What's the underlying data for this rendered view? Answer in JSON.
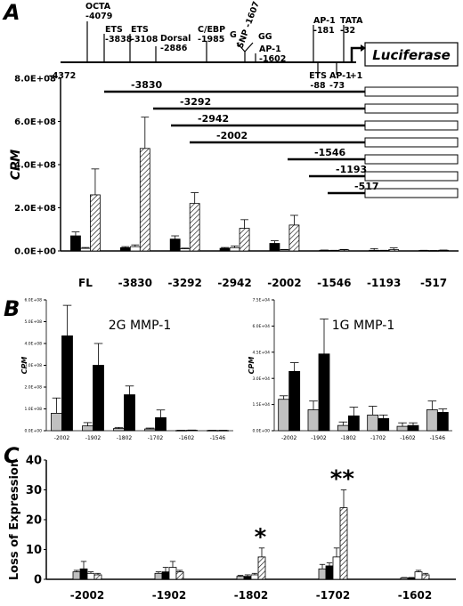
{
  "panels": {
    "a": "A",
    "b": "B",
    "c": "C"
  },
  "promoter": {
    "start_label": "-4372",
    "reporter": "Luciferase",
    "tss": "+1",
    "sites": [
      {
        "label": "OCTA\n-4079"
      },
      {
        "label": "ETS\n-3838"
      },
      {
        "label": "ETS\n-3108"
      },
      {
        "label": "Dorsal\n-2886"
      },
      {
        "label": "C/EBP\n-1985"
      },
      {
        "label": "G"
      },
      {
        "label": "SNP -1607"
      },
      {
        "label": "GG"
      },
      {
        "label": "AP-1\n-1602"
      },
      {
        "label": "AP-1\n-181"
      },
      {
        "label": "TATA\n-32"
      },
      {
        "label": "ETS\n-88"
      },
      {
        "label": "AP-1\n-73"
      }
    ]
  },
  "deletions": [
    "-3830",
    "-3292",
    "-2942",
    "-2002",
    "-1546",
    "-1193",
    "-517"
  ],
  "chart_data": [
    {
      "id": "A",
      "type": "bar",
      "ylabel": "CPM",
      "yticks": [
        "8.0E+08",
        "6.0E+08",
        "4.0E+08",
        "2.0E+08",
        "0.0E+00"
      ],
      "ylim": [
        0,
        800000000
      ],
      "categories": [
        "FL",
        "-3830",
        "-3292",
        "-2942",
        "-2002",
        "-1546",
        "-1193",
        "-517"
      ],
      "series": [
        {
          "color": "#000000",
          "pattern": "solid",
          "values": [
            70000000,
            15000000,
            55000000,
            12000000,
            35000000,
            3000000,
            3000000,
            2000000
          ],
          "errors": [
            18000000,
            5000000,
            15000000,
            4000000,
            12000000,
            1000000,
            8000000,
            1000000
          ]
        },
        {
          "color": "#ffffff",
          "pattern": "solid",
          "values": [
            12000000,
            20000000,
            10000000,
            15000000,
            5000000,
            2000000,
            2000000,
            1000000
          ],
          "errors": [
            4000000,
            8000000,
            3000000,
            8000000,
            2000000,
            1000000,
            1000000,
            1000000
          ]
        },
        {
          "color": "#ffffff",
          "pattern": "hatch",
          "values": [
            260000000,
            475000000,
            220000000,
            105000000,
            120000000,
            5000000,
            6000000,
            3000000
          ],
          "errors": [
            120000000,
            145000000,
            50000000,
            40000000,
            45000000,
            2000000,
            8000000,
            1000000
          ]
        }
      ]
    },
    {
      "id": "B-left",
      "type": "bar",
      "title": "2G MMP-1",
      "ylabel": "CPM",
      "yticks": [
        "6.0E+08",
        "5.0E+08",
        "4.0E+08",
        "3.0E+08",
        "2.0E+08",
        "1.0E+08",
        "0.0E+00"
      ],
      "ylim": [
        0,
        600000000
      ],
      "categories": [
        "-2002",
        "-1902",
        "-1802",
        "-1702",
        "-1602",
        "-1546"
      ],
      "series": [
        {
          "color": "#c0c0c0",
          "values": [
            80000000,
            22000000,
            10000000,
            8000000,
            1000000,
            1000000
          ],
          "errors": [
            70000000,
            15000000,
            5000000,
            4000000,
            1000000,
            1000000
          ]
        },
        {
          "color": "#000000",
          "values": [
            435000000,
            300000000,
            165000000,
            60000000,
            2000000,
            1000000
          ],
          "errors": [
            140000000,
            100000000,
            40000000,
            35000000,
            1000000,
            1000000
          ]
        }
      ]
    },
    {
      "id": "B-right",
      "type": "bar",
      "title": "1G MMP-1",
      "ylabel": "CPM",
      "yticks": [
        "7.5E+04",
        "6.0E+04",
        "4.5E+04",
        "3.0E+04",
        "1.5E+04",
        "0.0E+00"
      ],
      "ylim": [
        0,
        75000
      ],
      "categories": [
        "-2002",
        "-1902",
        "-1802",
        "-1702",
        "-1602",
        "-1546"
      ],
      "series": [
        {
          "color": "#c0c0c0",
          "values": [
            18000,
            12000,
            3000,
            9000,
            2500,
            12000
          ],
          "errors": [
            2000,
            5000,
            2000,
            5000,
            2000,
            5000
          ]
        },
        {
          "color": "#000000",
          "values": [
            34000,
            44000,
            8500,
            7000,
            3000,
            10500
          ],
          "errors": [
            5000,
            20000,
            5000,
            2000,
            1500,
            2000
          ]
        }
      ]
    },
    {
      "id": "C",
      "type": "bar",
      "ylabel": "Loss of Expression",
      "yticks": [
        "40",
        "30",
        "20",
        "10",
        "0"
      ],
      "ylim": [
        0,
        40
      ],
      "categories": [
        "-2002",
        "-1902",
        "-1802",
        "-1702",
        "-1602"
      ],
      "annotations": [
        {
          "category": "-1802",
          "text": "*"
        },
        {
          "category": "-1702",
          "text": "**"
        }
      ],
      "series": [
        {
          "color": "#c0c0c0",
          "pattern": "solid",
          "values": [
            2.5,
            2,
            1,
            3.5,
            0.5
          ],
          "errors": [
            0.5,
            0.5,
            0.3,
            1.5,
            0.1
          ]
        },
        {
          "color": "#000000",
          "pattern": "solid",
          "values": [
            3.5,
            2.5,
            1,
            4.5,
            0.5
          ],
          "errors": [
            2.5,
            1.5,
            0.5,
            1.0,
            0.1
          ]
        },
        {
          "color": "#ffffff",
          "pattern": "solid",
          "values": [
            2,
            4,
            1.5,
            7.5,
            2.5
          ],
          "errors": [
            0.5,
            2.0,
            0.5,
            3.0,
            0.5
          ]
        },
        {
          "color": "#ffffff",
          "pattern": "hatch",
          "values": [
            1.5,
            2.5,
            7.5,
            24,
            1.5
          ],
          "errors": [
            0.5,
            0.5,
            3.0,
            6.0,
            0.5
          ]
        }
      ]
    }
  ]
}
